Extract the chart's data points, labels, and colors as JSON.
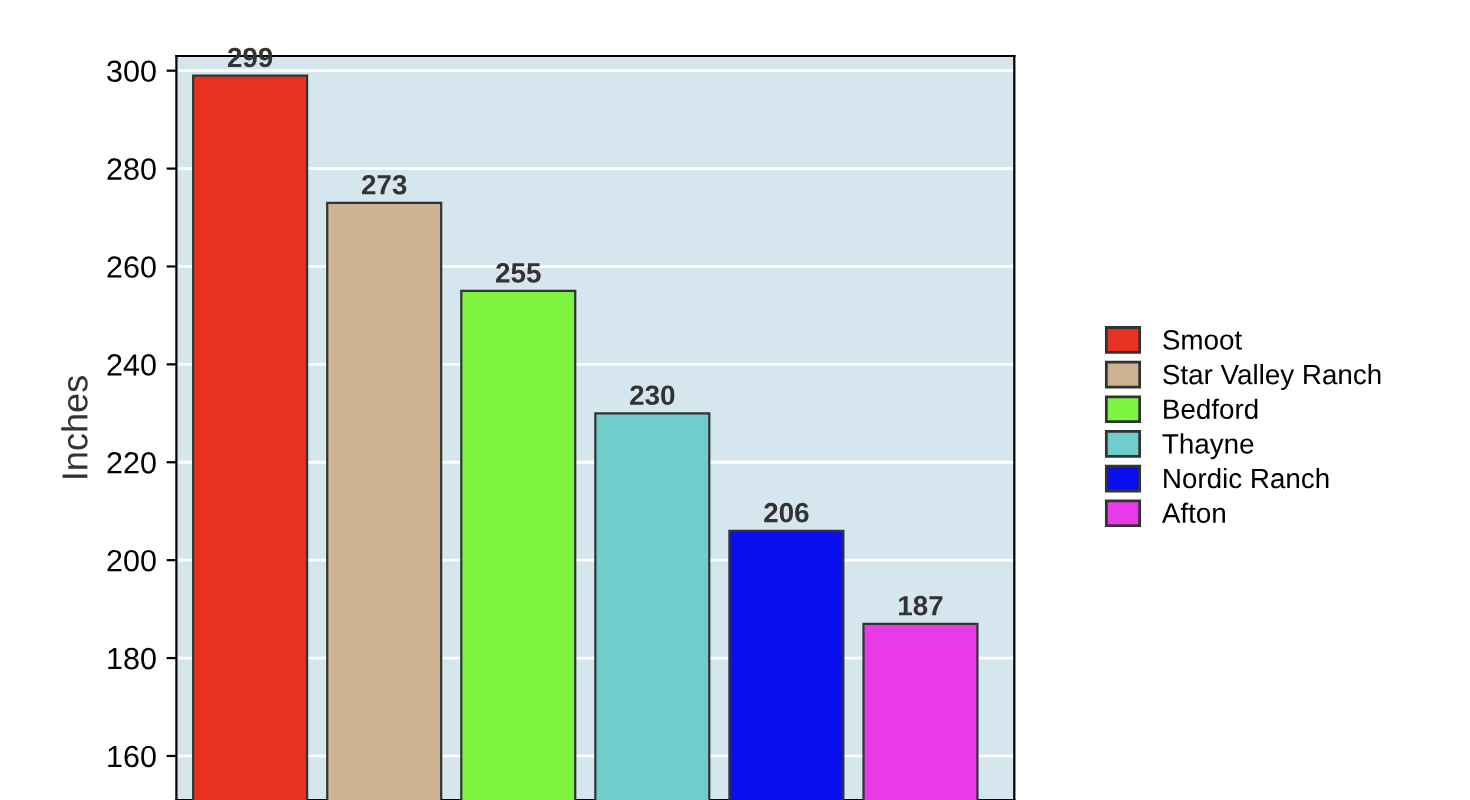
{
  "chart_data": {
    "type": "bar",
    "ylabel": "Inches",
    "categories": [
      null,
      null,
      null,
      null,
      null,
      null
    ],
    "series": [
      {
        "name": "Smoot",
        "color": "#e8321f",
        "values": [
          299,
          null,
          null,
          null,
          null,
          null
        ]
      },
      {
        "name": "Star Valley Ranch",
        "color": "#cdb38f",
        "values": [
          null,
          273,
          null,
          null,
          null,
          null
        ]
      },
      {
        "name": "Bedford",
        "color": "#7cf440",
        "values": [
          null,
          null,
          255,
          null,
          null,
          null
        ]
      },
      {
        "name": "Thayne",
        "color": "#70cdcb",
        "values": [
          null,
          null,
          null,
          230,
          null,
          null
        ]
      },
      {
        "name": "Nordic Ranch",
        "color": "#0a0ef0",
        "values": [
          null,
          null,
          null,
          null,
          206,
          null
        ]
      },
      {
        "name": "Afton",
        "color": "#e83ae8",
        "values": [
          null,
          null,
          null,
          null,
          null,
          187
        ]
      }
    ],
    "ylim": [
      151,
      303
    ],
    "yticks": [
      160,
      180,
      200,
      220,
      240,
      260,
      280,
      300
    ],
    "grid": "y",
    "legend": "right",
    "data_labels": true,
    "tick_labels": "y"
  }
}
